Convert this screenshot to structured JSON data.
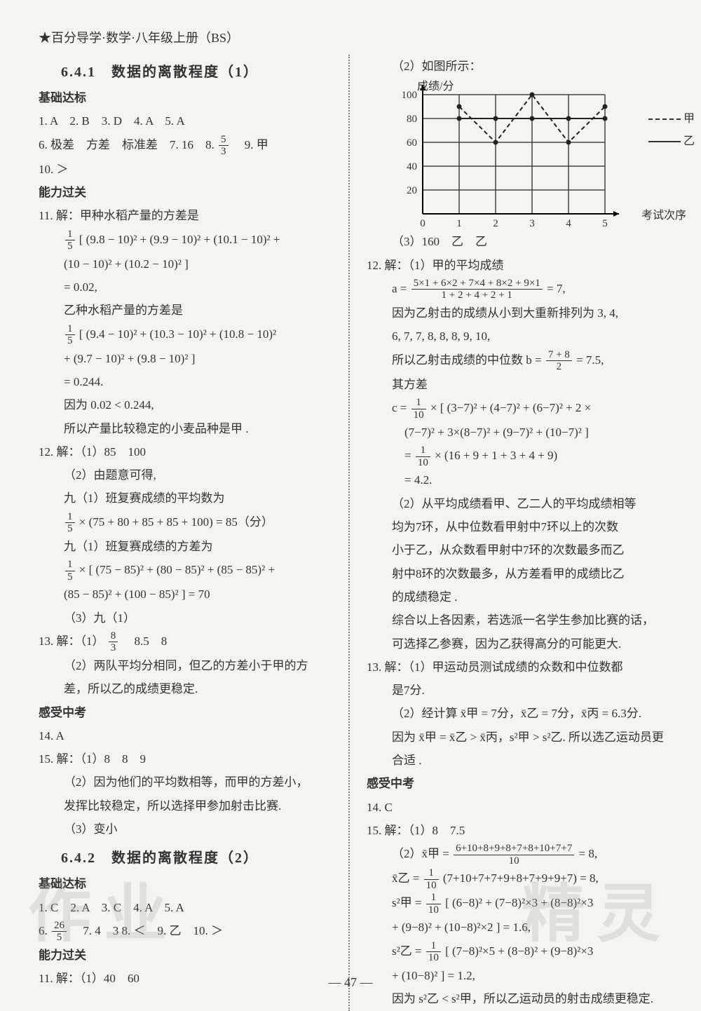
{
  "header": "★百分导学·数学·八年级上册（BS）",
  "page_number": "— 47 —",
  "watermarks": {
    "left": "作业",
    "right": "精灵"
  },
  "left": {
    "sec641_title": "6.4.1　数据的离散程度（1）",
    "jichu": "基础达标",
    "l1": "1. A　2. B　3. D　4. A　5. A",
    "l6a": "6. 极差　方差　标准差　7. 16　8. ",
    "l6_frac_num": "5",
    "l6_frac_den": "3",
    "l6b": "　9. 甲",
    "l10": "10. ＞",
    "nengli": "能力过关",
    "l11_1": "11. 解：甲种水稻产量的方差是",
    "l11_2a": "[ (9.8 − 10)² + (9.9 − 10)² + (10.1 − 10)² +",
    "l11_2_frac_num": "1",
    "l11_2_frac_den": "5",
    "l11_3": "(10 − 10)² + (10.2 − 10)² ]",
    "l11_4": "= 0.02,",
    "l11_5": "乙种水稻产量的方差是",
    "l11_6a": "[ (9.4 − 10)² + (10.3 − 10)² + (10.8 − 10)²",
    "l11_6_frac_num": "1",
    "l11_6_frac_den": "5",
    "l11_7": "+ (9.7 − 10)² + (9.8 − 10)² ]",
    "l11_8": "= 0.244.",
    "l11_9": "因为 0.02 < 0.244,",
    "l11_10": "所以产量比较稳定的小麦品种是甲 .",
    "l12_1": "12. 解：（1）85　100",
    "l12_2": "（2）由题意可得,",
    "l12_3": "九（1）班复赛成绩的平均数为",
    "l12_4a": " × (75 + 80 + 85 + 85 + 100) = 85（分）",
    "l12_4_frac_num": "1",
    "l12_4_frac_den": "5",
    "l12_5": "九（1）班复赛成绩的方差为",
    "l12_6a": " × [ (75 − 85)² + (80 − 85)² + (85 − 85)² +",
    "l12_6_frac_num": "1",
    "l12_6_frac_den": "5",
    "l12_7": "(85 − 85)² + (100 − 85)² ] = 70",
    "l12_8": "（3）九（1）",
    "l13_1a": "13. 解：（1）",
    "l13_1_frac_num": "8",
    "l13_1_frac_den": "3",
    "l13_1b": "　8.5　8",
    "l13_2": "（2）两队平均分相同，但乙的方差小于甲的方",
    "l13_3": "差，所以乙的成绩更稳定.",
    "ganshou": "感受中考",
    "l14": "14. A",
    "l15_1": "15. 解：（1）8　8　9",
    "l15_2": "（2）因为他们的平均数相等，而甲的方差小，",
    "l15_3": "发挥比较稳定，所以选择甲参加射击比赛.",
    "l15_4": "（3）变小",
    "sec642_title": "6.4.2　数据的离散程度（2）",
    "jichu2": "基础达标",
    "b1": "1. C　2. A　3. C　4. A　5. A",
    "b6a": "6. ",
    "b6_frac_num": "26",
    "b6_frac_den": "5",
    "b6b": "　7. 4　3 8. ＜　9. 乙　10. ＞",
    "nengli2": "能力过关",
    "b11": "11. 解：（1）40　60"
  },
  "right": {
    "r1": "（2）如图所示：",
    "chart": {
      "y_label": "成绩/分",
      "x_label": "考试次序",
      "y_ticks": [
        "0",
        "20",
        "40",
        "60",
        "80",
        "100"
      ],
      "x_ticks": [
        "0",
        "1",
        "2",
        "3",
        "4",
        "5"
      ],
      "legend_jia": "甲",
      "legend_yi": "乙",
      "jia_points": [
        [
          1,
          90
        ],
        [
          2,
          60
        ],
        [
          3,
          100
        ],
        [
          4,
          60
        ],
        [
          5,
          90
        ]
      ],
      "yi_points": [
        [
          1,
          80
        ],
        [
          2,
          80
        ],
        [
          3,
          80
        ],
        [
          4,
          80
        ],
        [
          5,
          80
        ]
      ],
      "grid_color": "#444444",
      "jia_dash": "6,4",
      "bg": "#f5f4f0"
    },
    "r3": "（3）160　乙　乙",
    "r12_1": "12. 解：（1）甲的平均成绩",
    "r12_2_lead": "a = ",
    "r12_2_num": "5×1 + 6×2 + 7×4 + 8×2 + 9×1",
    "r12_2_den": "1 + 2 + 4 + 2 + 1",
    "r12_2_tail": " = 7,",
    "r12_3": "因为乙射击的成绩从小到大重新排列为 3, 4,",
    "r12_4": "6, 7, 7, 8, 8, 8, 9, 10,",
    "r12_5a": "所以乙射击成绩的中位数 b = ",
    "r12_5_num": "7 + 8",
    "r12_5_den": "2",
    "r12_5b": " = 7.5,",
    "r12_6": "其方差",
    "r12_7a": "c = ",
    "r12_7_num": "1",
    "r12_7_den": "10",
    "r12_7b": " × [ (3−7)² + (4−7)² + (6−7)² + 2 ×",
    "r12_8": "(7−7)² + 3×(8−7)² + (9−7)² + (10−7)² ]",
    "r12_9a": "= ",
    "r12_9_num": "1",
    "r12_9_den": "10",
    "r12_9b": " × (16 + 9 + 1 + 3 + 4 + 9)",
    "r12_10": "= 4.2.",
    "r12_11": "（2）从平均成绩看甲、乙二人的平均成绩相等",
    "r12_12": "均为7环，从中位数看甲射中7环以上的次数",
    "r12_13": "小于乙，从众数看甲射中7环的次数最多而乙",
    "r12_14": "射中8环的次数最多，从方差看甲的成绩比乙",
    "r12_15": "的成绩稳定 .",
    "r12_16": "综合以上各因素，若选派一名学生参加比赛的话，",
    "r12_17": "可选择乙参赛，因为乙获得高分的可能更大.",
    "r13_1": "13. 解：（1）甲运动员测试成绩的众数和中位数都",
    "r13_2": "是7分.",
    "r13_3": "（2）经计算 x̄甲 = 7分，x̄乙 = 7分，x̄丙 = 6.3分.",
    "r13_4": "因为 x̄甲 = x̄乙 > x̄丙，s²甲 > s²乙. 所以选乙运动员更",
    "r13_5": "合适 .",
    "ganshou2": "感受中考",
    "r14": "14. C",
    "r15_1": "15. 解：（1）8　7.5",
    "r15_2a": "（2）x̄甲 = ",
    "r15_2_num": "6+10+8+9+8+7+8+10+7+7",
    "r15_2_den": "10",
    "r15_2b": " = 8,",
    "r15_3a": "x̄乙 = ",
    "r15_3_num": "1",
    "r15_3_den": "10",
    "r15_3b": "(7+10+7+7+9+8+7+9+9+7) = 8,",
    "r15_4a": "s²甲 = ",
    "r15_4_num": "1",
    "r15_4_den": "10",
    "r15_4b": " [ (6−8)² + (7−8)²×3 + (8−8)²×3",
    "r15_5": "+ (9−8)² + (10−8)²×2 ] = 1.6,",
    "r15_6a": "s²乙 = ",
    "r15_6_num": "1",
    "r15_6_den": "10",
    "r15_6b": " [ (7−8)²×5 + (8−8)² + (9−8)²×3",
    "r15_7": "+ (10−8)² ] = 1.2,",
    "r15_8": "因为 s²乙 < s²甲，所以乙运动员的射击成绩更稳定."
  }
}
